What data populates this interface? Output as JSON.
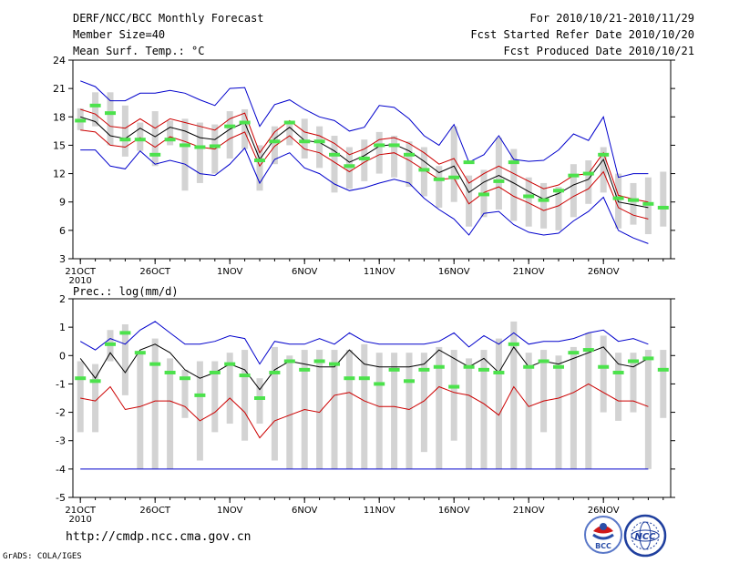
{
  "header": {
    "title": "DERF/NCC/BCC Monthly Forecast",
    "member_size": "Member Size=40",
    "variable": "Mean Surf. Temp.: °C",
    "forecast_period": "For 2010/10/21-2010/11/29",
    "start_date": "Fcst Started Refer Date 2010/10/20",
    "produced_date": "Fcst Produced Date 2010/10/21"
  },
  "footer": {
    "url": "http://cmdp.ncc.cma.gov.cn",
    "credit": "GrADS: COLA/IGES",
    "logo_bcc": "BCC",
    "logo_ncc": "NCC"
  },
  "colors": {
    "box": "#d3d3d3",
    "obs": "#4ce24c",
    "ensemble_mean": "#000000",
    "spread": "#cc0000",
    "envelope": "#0000cc"
  },
  "chart_data": [
    {
      "type": "line",
      "title": "Mean Surf. Temp.: °C",
      "x_tick_labels": [
        "21OCT",
        "26OCT",
        "1NOV",
        "6NOV",
        "11NOV",
        "16NOV",
        "21NOV",
        "26NOV"
      ],
      "x_tick_days": [
        1,
        6,
        11,
        16,
        21,
        26,
        31,
        36
      ],
      "year_label": "2010",
      "ylim": [
        3,
        24
      ],
      "y_ticks": [
        3,
        6,
        9,
        12,
        15,
        18,
        21,
        24
      ],
      "days": [
        1,
        2,
        3,
        4,
        5,
        6,
        7,
        8,
        9,
        10,
        11,
        12,
        13,
        14,
        15,
        16,
        17,
        18,
        19,
        20,
        21,
        22,
        23,
        24,
        25,
        26,
        27,
        28,
        29,
        30,
        31,
        32,
        33,
        34,
        35,
        36,
        37,
        38,
        39,
        40
      ],
      "series": [
        {
          "name": "max",
          "values": [
            21.8,
            21.2,
            19.7,
            19.7,
            20.5,
            20.5,
            20.8,
            20.5,
            19.8,
            19.2,
            21.0,
            21.1,
            17.0,
            19.3,
            19.8,
            18.8,
            18.0,
            17.6,
            16.5,
            16.9,
            19.2,
            19.0,
            17.8,
            16.0,
            15.0,
            17.2,
            13.2,
            14.0,
            16.0,
            13.5,
            13.3,
            13.4,
            14.5,
            16.2,
            15.5,
            18.0,
            11.6,
            12.0,
            12.0,
            null
          ]
        },
        {
          "name": "upper",
          "values": [
            18.8,
            18.3,
            17.0,
            16.8,
            17.8,
            16.8,
            17.8,
            17.4,
            17.0,
            16.6,
            17.8,
            18.4,
            14.2,
            16.4,
            17.6,
            16.4,
            16.0,
            15.2,
            14.0,
            14.6,
            15.6,
            15.8,
            15.2,
            14.2,
            13.0,
            13.6,
            11.0,
            12.0,
            12.8,
            12.0,
            11.2,
            10.4,
            10.8,
            11.8,
            12.0,
            14.2,
            9.7,
            9.3,
            9.0,
            null
          ]
        },
        {
          "name": "mean",
          "values": [
            18.0,
            17.5,
            16.0,
            15.7,
            16.8,
            15.9,
            16.9,
            16.5,
            15.8,
            15.6,
            16.7,
            17.4,
            13.5,
            15.7,
            16.9,
            15.5,
            15.3,
            14.4,
            13.2,
            13.9,
            14.9,
            15.1,
            14.4,
            13.3,
            12.1,
            12.8,
            10.0,
            11.1,
            11.8,
            11.0,
            10.1,
            9.3,
            9.9,
            10.8,
            11.4,
            13.5,
            9.0,
            8.7,
            8.4,
            null
          ]
        },
        {
          "name": "lower",
          "values": [
            16.6,
            16.4,
            15.0,
            14.8,
            15.8,
            14.8,
            15.9,
            15.4,
            14.8,
            14.6,
            15.7,
            16.4,
            12.8,
            14.9,
            16.0,
            14.6,
            14.2,
            13.2,
            12.2,
            13.2,
            14.0,
            14.2,
            13.4,
            12.4,
            11.4,
            11.5,
            8.8,
            10.0,
            10.6,
            9.6,
            8.9,
            8.1,
            8.6,
            9.6,
            10.4,
            12.2,
            8.4,
            7.6,
            7.2,
            null
          ]
        },
        {
          "name": "min",
          "values": [
            14.5,
            14.5,
            12.8,
            12.5,
            14.4,
            13.0,
            13.4,
            13.0,
            12.0,
            11.8,
            13.0,
            14.7,
            11.0,
            13.5,
            14.2,
            12.6,
            12.0,
            10.9,
            10.2,
            10.5,
            11.0,
            11.4,
            11.0,
            9.4,
            8.2,
            7.2,
            5.5,
            7.8,
            8.0,
            6.6,
            5.8,
            5.5,
            5.7,
            7.0,
            8.0,
            9.5,
            6.0,
            5.2,
            4.6,
            null
          ]
        }
      ],
      "box_low": [
        16.6,
        17.0,
        15.0,
        13.8,
        14.4,
        12.8,
        15.0,
        10.2,
        11.0,
        12.0,
        13.6,
        14.6,
        10.2,
        13.0,
        15.0,
        13.6,
        12.6,
        10.0,
        10.4,
        11.2,
        12.0,
        11.6,
        10.6,
        9.6,
        8.4,
        9.0,
        6.4,
        7.4,
        8.2,
        7.0,
        6.4,
        6.2,
        6.0,
        7.4,
        8.8,
        10.0,
        6.2,
        6.6,
        5.6,
        6.4
      ],
      "box_high": [
        18.9,
        20.6,
        20.6,
        19.2,
        17.4,
        18.6,
        17.6,
        17.8,
        17.4,
        17.2,
        18.6,
        18.8,
        15.0,
        17.0,
        17.2,
        17.8,
        17.0,
        16.0,
        14.8,
        15.6,
        16.4,
        16.0,
        15.4,
        14.8,
        12.8,
        17.0,
        11.8,
        12.4,
        15.8,
        14.6,
        11.6,
        11.0,
        10.6,
        13.0,
        13.4,
        14.8,
        12.0,
        11.0,
        11.6,
        12.2
      ],
      "obs": [
        17.6,
        19.2,
        18.4,
        15.6,
        15.6,
        14.0,
        15.6,
        15.0,
        14.8,
        14.9,
        17.0,
        17.4,
        13.4,
        15.4,
        17.4,
        15.4,
        15.4,
        14.0,
        12.8,
        13.6,
        15.0,
        15.0,
        14.0,
        12.4,
        11.4,
        11.6,
        13.2,
        9.8,
        11.2,
        13.2,
        9.6,
        9.2,
        10.2,
        11.8,
        12.0,
        14.0,
        9.4,
        9.2,
        8.8,
        8.4
      ]
    },
    {
      "type": "line",
      "title": "Prec.: log(mm/d)",
      "x_tick_labels": [
        "21OCT",
        "26OCT",
        "1NOV",
        "6NOV",
        "11NOV",
        "16NOV",
        "21NOV",
        "26NOV"
      ],
      "x_tick_days": [
        1,
        6,
        11,
        16,
        21,
        26,
        31,
        36
      ],
      "year_label": "2010",
      "ylim": [
        -5,
        2
      ],
      "y_ticks": [
        -5,
        -4,
        -3,
        -2,
        -1,
        0,
        1,
        2
      ],
      "days": [
        1,
        2,
        3,
        4,
        5,
        6,
        7,
        8,
        9,
        10,
        11,
        12,
        13,
        14,
        15,
        16,
        17,
        18,
        19,
        20,
        21,
        22,
        23,
        24,
        25,
        26,
        27,
        28,
        29,
        30,
        31,
        32,
        33,
        34,
        35,
        36,
        37,
        38,
        39,
        40
      ],
      "series": [
        {
          "name": "max",
          "values": [
            0.5,
            0.2,
            0.6,
            0.4,
            0.9,
            1.2,
            0.8,
            0.4,
            0.4,
            0.5,
            0.7,
            0.6,
            -0.3,
            0.5,
            0.4,
            0.4,
            0.6,
            0.4,
            0.8,
            0.5,
            0.4,
            0.4,
            0.4,
            0.4,
            0.5,
            0.8,
            0.3,
            0.7,
            0.4,
            0.8,
            0.4,
            0.5,
            0.5,
            0.6,
            0.8,
            0.9,
            0.5,
            0.6,
            0.4,
            null
          ]
        },
        {
          "name": "mean",
          "values": [
            -0.1,
            -0.8,
            0.1,
            -0.6,
            0.2,
            0.4,
            0.1,
            -0.5,
            -0.8,
            -0.6,
            -0.3,
            -0.5,
            -1.2,
            -0.5,
            -0.2,
            -0.3,
            -0.4,
            -0.4,
            0.2,
            -0.3,
            -0.4,
            -0.4,
            -0.4,
            -0.3,
            0.2,
            -0.1,
            -0.4,
            -0.1,
            -0.6,
            0.3,
            -0.4,
            -0.2,
            -0.3,
            -0.1,
            0.1,
            0.3,
            -0.3,
            -0.4,
            -0.1,
            null
          ]
        },
        {
          "name": "spread",
          "values": [
            -1.5,
            -1.6,
            -1.1,
            -1.9,
            -1.8,
            -1.6,
            -1.6,
            -1.8,
            -2.3,
            -2.0,
            -1.5,
            -2.0,
            -2.9,
            -2.3,
            -2.1,
            -1.9,
            -2.0,
            -1.4,
            -1.3,
            -1.6,
            -1.8,
            -1.8,
            -1.9,
            -1.6,
            -1.1,
            -1.3,
            -1.4,
            -1.7,
            -2.1,
            -1.1,
            -1.8,
            -1.6,
            -1.5,
            -1.3,
            -1.0,
            -1.3,
            -1.6,
            -1.6,
            -1.8,
            null
          ]
        },
        {
          "name": "min",
          "values": [
            -4,
            -4,
            -4,
            -4,
            -4,
            -4,
            -4,
            -4,
            -4,
            -4,
            -4,
            -4,
            -4,
            -4,
            -4,
            -4,
            -4,
            -4,
            -4,
            -4,
            -4,
            -4,
            -4,
            -4,
            -4,
            -4,
            -4,
            -4,
            -4,
            -4,
            -4,
            -4,
            -4,
            -4,
            -4,
            -4,
            -4,
            -4,
            -4,
            null
          ]
        }
      ],
      "box_low": [
        -2.7,
        -2.7,
        -0.2,
        -1.4,
        -4.0,
        -4.0,
        -4.0,
        -2.2,
        -3.7,
        -2.7,
        -2.4,
        -3.0,
        -2.4,
        -3.7,
        -4.0,
        -4.0,
        -4.0,
        -4.0,
        -4.0,
        -4.0,
        -4.0,
        -4.0,
        -4.0,
        -3.4,
        -4.0,
        -3.0,
        -4.0,
        -4.0,
        -4.0,
        -4.0,
        -4.0,
        -2.7,
        -4.0,
        -4.0,
        -4.0,
        -2.0,
        -2.3,
        -2.0,
        -4.0,
        -2.2
      ],
      "box_high": [
        -0.2,
        -0.3,
        0.9,
        1.1,
        0.1,
        0.6,
        -0.1,
        -0.5,
        -0.2,
        -0.2,
        0.1,
        0.2,
        -0.8,
        0.3,
        0.0,
        0.2,
        0.2,
        0.2,
        0.2,
        0.4,
        0.1,
        0.1,
        0.1,
        0.1,
        0.3,
        0.2,
        -0.1,
        0.2,
        0.6,
        1.2,
        0.1,
        0.2,
        0.0,
        0.3,
        0.8,
        0.7,
        0.1,
        0.1,
        0.2,
        0.2
      ],
      "obs": [
        -0.8,
        -0.9,
        0.4,
        0.8,
        0.1,
        -0.3,
        -0.6,
        -0.8,
        -1.4,
        -0.6,
        -0.3,
        -0.7,
        -1.5,
        -0.6,
        -0.2,
        -0.5,
        -0.2,
        -0.3,
        -0.8,
        -0.8,
        -1.0,
        -0.5,
        -0.9,
        -0.5,
        -0.4,
        -1.1,
        -0.4,
        -0.5,
        -0.6,
        0.4,
        -0.4,
        -0.2,
        -0.4,
        0.1,
        0.2,
        -0.4,
        -0.6,
        -0.2,
        -0.1,
        -0.5
      ]
    }
  ]
}
